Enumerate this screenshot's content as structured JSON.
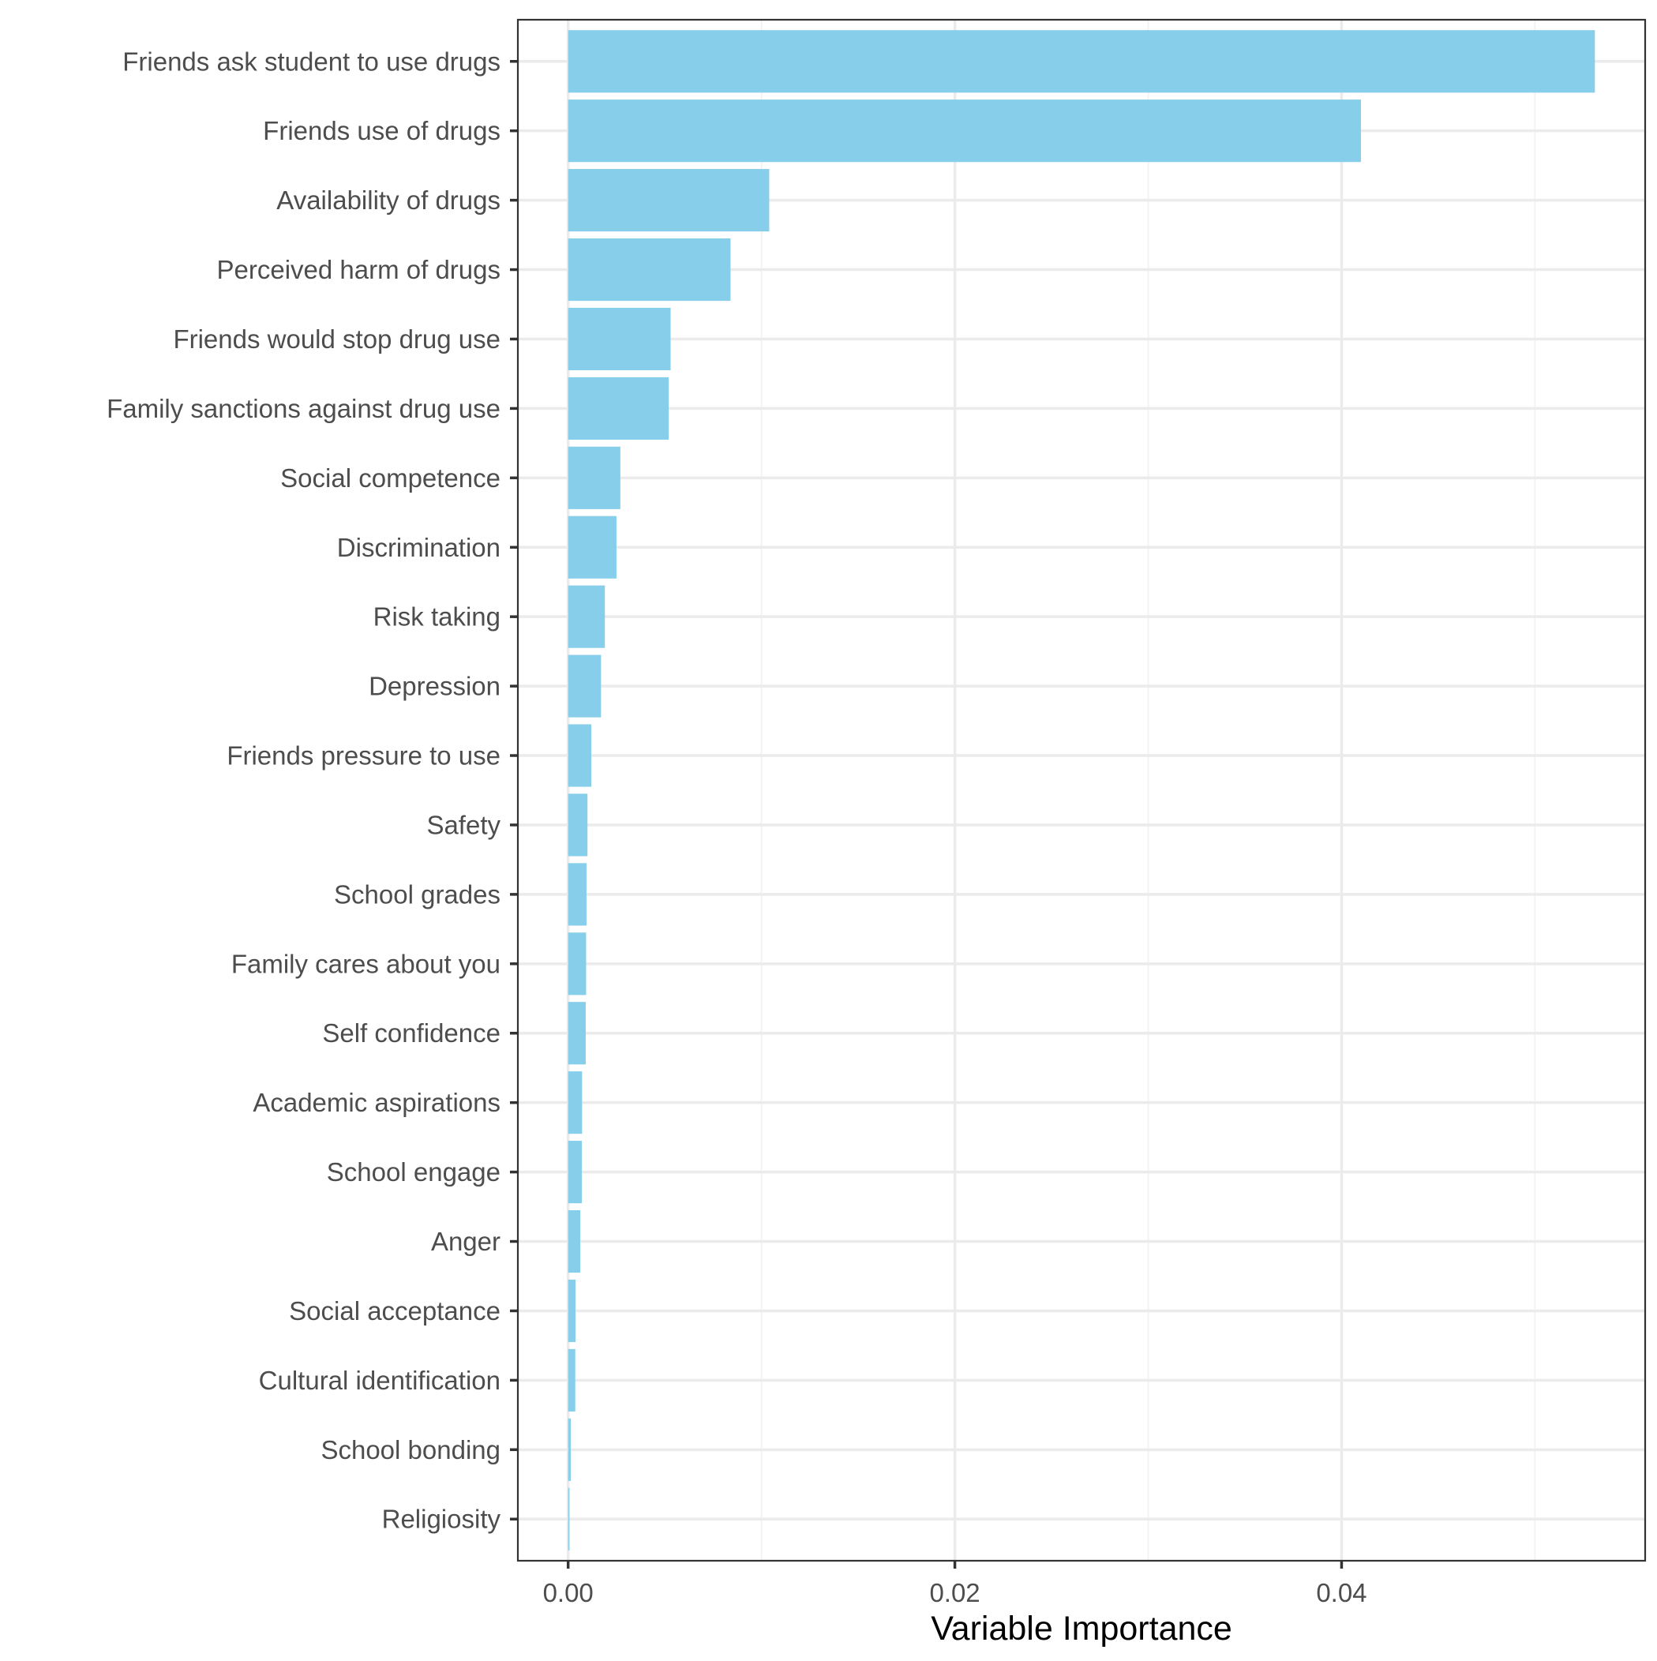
{
  "chart_data": {
    "type": "bar",
    "orientation": "horizontal",
    "title": "",
    "xlabel": "Variable Importance",
    "ylabel": "",
    "categories": [
      "Friends ask student to use drugs",
      "Friends use of drugs",
      "Availability of drugs",
      "Perceived harm of drugs",
      "Friends would stop drug use",
      "Family sanctions against drug use",
      "Social competence",
      "Discrimination",
      "Risk taking",
      "Depression",
      "Friends pressure to use",
      "Safety",
      "School grades",
      "Family cares about you",
      "Self confidence",
      "Academic aspirations",
      "School engage",
      "Anger",
      "Social acceptance",
      "Cultural identification",
      "School bonding",
      "Religiosity"
    ],
    "values": [
      0.0531,
      0.041,
      0.0104,
      0.0084,
      0.0053,
      0.0052,
      0.0027,
      0.0025,
      0.0019,
      0.0017,
      0.0012,
      0.001,
      0.00095,
      0.00093,
      0.00091,
      0.00072,
      0.00071,
      0.00063,
      0.00038,
      0.00037,
      0.00014,
      7e-05
    ],
    "xlim": [
      -0.0026,
      0.0557
    ],
    "xticks": [
      0.0,
      0.02,
      0.04
    ],
    "xtick_labels": [
      "0.00",
      "0.02",
      "0.04"
    ],
    "bar_color": "#87CEEB",
    "grid": true,
    "legend": "none"
  }
}
